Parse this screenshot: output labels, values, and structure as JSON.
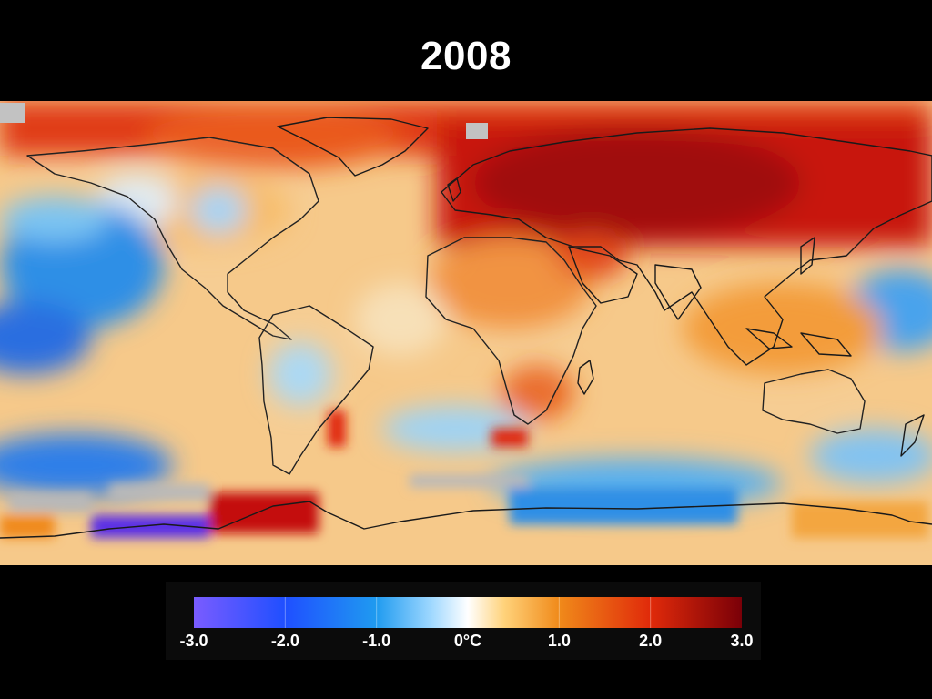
{
  "title": "2008",
  "legend": {
    "ticks": [
      {
        "label": "-3.0",
        "value": -3.0
      },
      {
        "label": "-2.0",
        "value": -2.0
      },
      {
        "label": "-1.0",
        "value": -1.0
      },
      {
        "label": "0°C",
        "value": 0.0
      },
      {
        "label": "1.0",
        "value": 1.0
      },
      {
        "label": "2.0",
        "value": 2.0
      },
      {
        "label": "3.0",
        "value": 3.0
      }
    ],
    "range": [
      -3.0,
      3.0
    ],
    "color_stops": [
      {
        "value": -3.0,
        "color": "#7a5cff"
      },
      {
        "value": -2.0,
        "color": "#1f4fff"
      },
      {
        "value": -1.0,
        "color": "#1f9bf0"
      },
      {
        "value": -0.4,
        "color": "#9fd8ff"
      },
      {
        "value": 0.0,
        "color": "#ffffff"
      },
      {
        "value": 0.4,
        "color": "#ffd27a"
      },
      {
        "value": 1.0,
        "color": "#f08a1a"
      },
      {
        "value": 2.0,
        "color": "#e02a0a"
      },
      {
        "value": 3.0,
        "color": "#7a0008"
      }
    ]
  },
  "colors": {
    "background": "#000000",
    "title": "#ffffff",
    "coastline": "#1a1a1a",
    "no_data": "#b4b4b4"
  }
}
